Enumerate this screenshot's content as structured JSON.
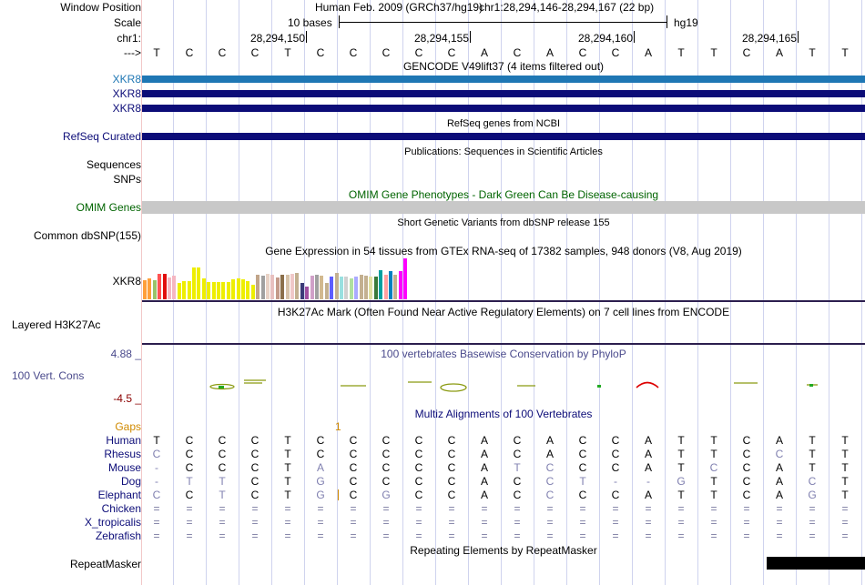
{
  "colors": {
    "gencode_first": "#1f77b4",
    "gencode": "#0c0c78",
    "refseq": "#0c0c78",
    "omim_label": "#006400",
    "omim_bar": "#c8c8c8",
    "cons_label": "#4a4a8c",
    "cons_low": "#8b0000",
    "gaps": "#d08a00",
    "species_label": "#0c0c78",
    "h3k27ac_line": "#2c1e4e",
    "repeat_bar": "#000000"
  },
  "header": {
    "window_position_label": "Window Position",
    "scale_label": "Scale",
    "chr_label": "chr1:",
    "arrow_label": "--->",
    "assembly": "Human Feb. 2009 (GRCh37/hg19)",
    "position": "chr1:28,294,146-28,294,167 (22 bp)",
    "scale_text": "10 bases",
    "db": "hg19",
    "ticks": [
      "28,294,150",
      "28,294,155",
      "28,294,160",
      "28,294,165"
    ]
  },
  "sequence": [
    "T",
    "C",
    "C",
    "C",
    "T",
    "C",
    "C",
    "C",
    "C",
    "C",
    "A",
    "C",
    "A",
    "C",
    "C",
    "A",
    "T",
    "T",
    "C",
    "A",
    "T",
    "T"
  ],
  "gencode": {
    "title": "GENCODE V49lift37 (4 items filtered out)",
    "items": [
      "XKR8",
      "XKR8",
      "XKR8"
    ]
  },
  "refseq": {
    "title": "RefSeq genes from NCBI",
    "label": "RefSeq Curated"
  },
  "publications": {
    "title": "Publications: Sequences in Scientific Articles",
    "labels": [
      "Sequences",
      "SNPs"
    ]
  },
  "omim": {
    "title": "OMIM Gene Phenotypes - Dark Green Can Be Disease-causing",
    "label": "OMIM Genes"
  },
  "dbsnp": {
    "title": "Short Genetic Variants from dbSNP release 155",
    "label": "Common dbSNP(155)"
  },
  "gtex": {
    "title": "Gene Expression in 54 tissues from GTEx RNA-seq of 17382 samples, 948 donors (V8, Aug 2019)",
    "label": "XKR8",
    "heights": [
      0.46,
      0.5,
      0.46,
      0.62,
      0.62,
      0.54,
      0.58,
      0.4,
      0.44,
      0.44,
      0.78,
      0.78,
      0.5,
      0.42,
      0.42,
      0.42,
      0.42,
      0.42,
      0.48,
      0.5,
      0.48,
      0.44,
      0.36,
      0.6,
      0.58,
      0.62,
      0.6,
      0.54,
      0.6,
      0.6,
      0.62,
      0.64,
      0.4,
      0.32,
      0.58,
      0.6,
      0.58,
      0.4,
      0.56,
      0.64,
      0.56,
      0.56,
      0.5,
      0.56,
      0.6,
      0.58,
      0.56,
      0.56,
      0.72,
      0.6,
      0.68,
      0.6,
      0.7,
      1.0
    ],
    "colors": [
      "#ff9f3a",
      "#ff9f3a",
      "#99c46a",
      "#ff5252",
      "#e10d0d",
      "#f5b7c2",
      "#f5b7c2",
      "#eeee00",
      "#eeee00",
      "#eeee00",
      "#eeee00",
      "#eeee00",
      "#eeee00",
      "#eeee00",
      "#eeee00",
      "#eeee00",
      "#eeee00",
      "#eeee00",
      "#eeee00",
      "#eeee00",
      "#eeee00",
      "#eeee00",
      "#eeee00",
      "#c1a58a",
      "#a0a0a0",
      "#e8d2c6",
      "#e8c0c0",
      "#c49a8a",
      "#8b6f4a",
      "#d7c2a8",
      "#f0c8c8",
      "#c3b090",
      "#3b3b78",
      "#a04fa0",
      "#d0a0c8",
      "#a0a0a0",
      "#d2b98f",
      "#c3b090",
      "#5d5dff",
      "#c3b090",
      "#99e0e0",
      "#d0d0d0",
      "#b0e0a0",
      "#aaaaff",
      "#c3b090",
      "#c3b090",
      "#e0e0a0",
      "#3a7a3a",
      "#00a0a0",
      "#ffa0a0",
      "#0080c0",
      "#c3b090",
      "#ff00ff",
      "#ff00ff"
    ]
  },
  "h3k27ac": {
    "title": "H3K27Ac Mark (Often Found Near Active Regulatory Elements) on 7 cell lines from ENCODE",
    "label": "Layered H3K27Ac"
  },
  "conservation": {
    "title": "100 vertebrates Basewise Conservation by PhyloP",
    "label": "100 Vert. Cons",
    "max_label": "4.88 _",
    "min_label": "-4.5 _"
  },
  "multiz": {
    "title": "Multiz Alignments of 100 Vertebrates",
    "gaps_label": "Gaps",
    "gap_marker": "1",
    "species": [
      {
        "name": "Human",
        "seq": [
          "T",
          "C",
          "C",
          "C",
          "T",
          "C",
          "C",
          "C",
          "C",
          "C",
          "A",
          "C",
          "A",
          "C",
          "C",
          "A",
          "T",
          "T",
          "C",
          "A",
          "T",
          "T"
        ]
      },
      {
        "name": "Rhesus",
        "seq": [
          "C",
          "C",
          "C",
          "C",
          "T",
          "C",
          "C",
          "C",
          "C",
          "C",
          "A",
          "C",
          "A",
          "C",
          "C",
          "A",
          "T",
          "T",
          "C",
          "C",
          "T",
          "T"
        ]
      },
      {
        "name": "Mouse",
        "seq": [
          "-",
          "C",
          "C",
          "C",
          "T",
          "A",
          "C",
          "C",
          "C",
          "C",
          "A",
          "T",
          "C",
          "C",
          "C",
          "A",
          "T",
          "C",
          "C",
          "A",
          "T",
          "T"
        ]
      },
      {
        "name": "Dog",
        "seq": [
          "-",
          "T",
          "T",
          "C",
          "T",
          "G",
          "C",
          "C",
          "C",
          "C",
          "A",
          "C",
          "C",
          "T",
          "-",
          "-",
          "G",
          "T",
          "C",
          "A",
          "C",
          "T"
        ]
      },
      {
        "name": "Elephant",
        "seq": [
          "C",
          "C",
          "T",
          "C",
          "T",
          "G",
          "C",
          "G",
          "C",
          "C",
          "A",
          "C",
          "C",
          "C",
          "C",
          "A",
          "T",
          "T",
          "C",
          "A",
          "G",
          "T"
        ]
      },
      {
        "name": "Chicken",
        "seq": [
          "=",
          "=",
          "=",
          "=",
          "=",
          "=",
          "=",
          "=",
          "=",
          "=",
          "=",
          "=",
          "=",
          "=",
          "=",
          "=",
          "=",
          "=",
          "=",
          "=",
          "=",
          "="
        ]
      },
      {
        "name": "X_tropicalis",
        "seq": [
          "=",
          "=",
          "=",
          "=",
          "=",
          "=",
          "=",
          "=",
          "=",
          "=",
          "=",
          "=",
          "=",
          "=",
          "=",
          "=",
          "=",
          "=",
          "=",
          "=",
          "=",
          "="
        ]
      },
      {
        "name": "Zebrafish",
        "seq": [
          "=",
          "=",
          "=",
          "=",
          "=",
          "=",
          "=",
          "=",
          "=",
          "=",
          "=",
          "=",
          "=",
          "=",
          "=",
          "=",
          "=",
          "=",
          "=",
          "=",
          "=",
          "="
        ]
      }
    ]
  },
  "repeatmasker": {
    "title": "Repeating Elements by RepeatMasker",
    "label": "RepeatMasker"
  }
}
